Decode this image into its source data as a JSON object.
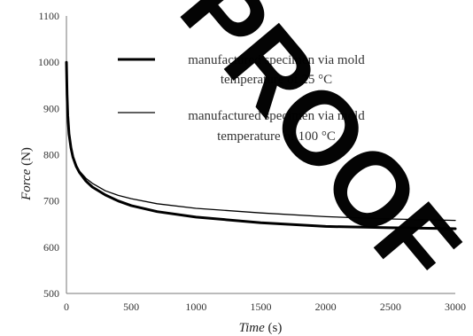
{
  "chart_data": {
    "type": "line",
    "xlabel": {
      "italic": "Time",
      "unit": "(s)"
    },
    "ylabel": {
      "italic": "Force",
      "unit": "(N)"
    },
    "xlim": [
      0,
      3000
    ],
    "ylim": [
      500,
      1100
    ],
    "x_ticks": [
      0,
      500,
      1000,
      1500,
      2000,
      2500,
      3000
    ],
    "y_ticks": [
      500,
      600,
      700,
      800,
      900,
      1000,
      1100
    ],
    "grid": false,
    "legend_position": "top-right",
    "series": [
      {
        "name_lines": [
          "manufactured specimen via mold",
          "temperature of 25 °C"
        ],
        "color": "#000000",
        "line": "thick",
        "x": [
          0,
          5,
          10,
          20,
          35,
          50,
          75,
          100,
          150,
          200,
          300,
          400,
          500,
          700,
          1000,
          1500,
          2000,
          2500,
          3000
        ],
        "y": [
          1000,
          930,
          885,
          845,
          815,
          795,
          775,
          762,
          743,
          730,
          713,
          700,
          690,
          677,
          665,
          653,
          645,
          642,
          640
        ]
      },
      {
        "name_lines": [
          "manufactured specimen via mold",
          "temperature of 100 °C"
        ],
        "color": "#000000",
        "line": "thin",
        "x": [
          0,
          5,
          10,
          20,
          35,
          50,
          75,
          100,
          150,
          200,
          300,
          400,
          500,
          700,
          1000,
          1500,
          2000,
          2500,
          3000
        ],
        "y": [
          1000,
          925,
          878,
          840,
          812,
          795,
          777,
          765,
          749,
          738,
          722,
          712,
          705,
          694,
          684,
          674,
          666,
          661,
          658
        ]
      }
    ]
  },
  "watermark": "PROOF",
  "colors": {
    "axis": "#777777",
    "text": "#333333",
    "watermark": "#000000"
  }
}
